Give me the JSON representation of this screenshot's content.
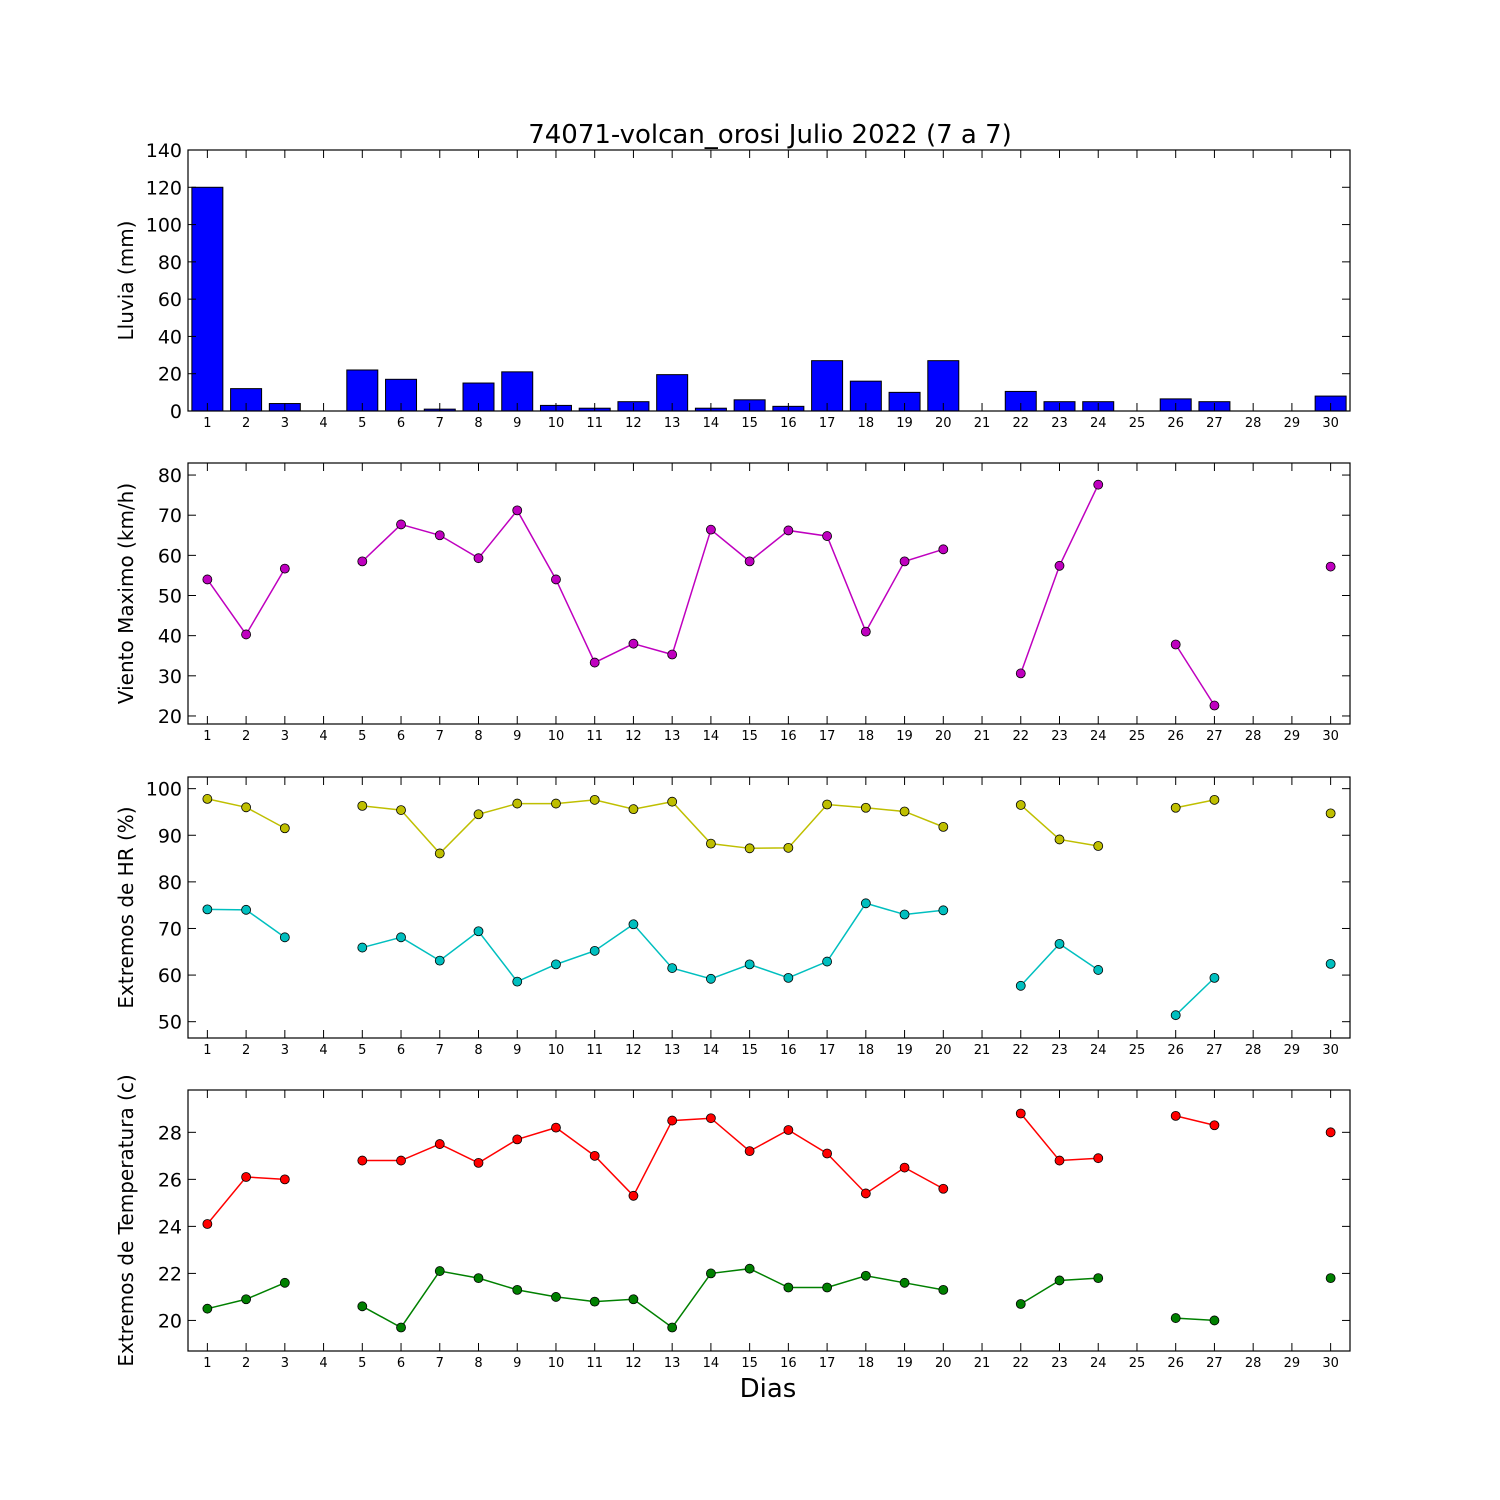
{
  "figure_title": "74071-volcan_orosi Julio 2022  (7 a 7)",
  "xlabel": "Dias",
  "colors": {
    "rain": "#0000ff",
    "wind": "#bf00bf",
    "hr_max": "#bfbf00",
    "hr_min": "#00bfbf",
    "temp_max": "#ff0000",
    "temp_min": "#008000"
  },
  "chart_data": [
    {
      "type": "bar",
      "id": "rain",
      "ylabel": "Lluvia (mm)",
      "ylim": [
        0,
        140
      ],
      "yticks": [
        0,
        20,
        40,
        60,
        80,
        100,
        120,
        140
      ],
      "categories": [
        1,
        2,
        3,
        4,
        5,
        6,
        7,
        8,
        9,
        10,
        11,
        12,
        13,
        14,
        15,
        16,
        17,
        18,
        19,
        20,
        21,
        22,
        23,
        24,
        25,
        26,
        27,
        28,
        29,
        30
      ],
      "series": [
        {
          "values": [
            120,
            12,
            4,
            0,
            22,
            17,
            1,
            15,
            21,
            3,
            1.5,
            5,
            19.5,
            1.5,
            6,
            2.5,
            27,
            16,
            10,
            27,
            0,
            10.5,
            5,
            5,
            0,
            6.5,
            5,
            0,
            0,
            8
          ],
          "color_key": "rain"
        }
      ]
    },
    {
      "type": "line",
      "id": "wind",
      "ylabel": "Viento Maximo (km/h)",
      "ylim": [
        18,
        83
      ],
      "yticks": [
        20,
        30,
        40,
        50,
        60,
        70,
        80
      ],
      "x": [
        1,
        2,
        3,
        4,
        5,
        6,
        7,
        8,
        9,
        10,
        11,
        12,
        13,
        14,
        15,
        16,
        17,
        18,
        19,
        20,
        21,
        22,
        23,
        24,
        25,
        26,
        27,
        28,
        29,
        30
      ],
      "series": [
        {
          "values": [
            54,
            40.3,
            56.7,
            null,
            58.5,
            67.7,
            65,
            59.3,
            71.2,
            54,
            33.3,
            38,
            35.3,
            66.4,
            58.5,
            66.2,
            64.8,
            41,
            58.5,
            61.5,
            null,
            30.6,
            57.4,
            77.6,
            null,
            37.8,
            22.6,
            null,
            null,
            57.2
          ],
          "color_key": "wind"
        }
      ]
    },
    {
      "type": "line",
      "id": "hr",
      "ylabel": "Extremos de HR (%)",
      "ylim": [
        46.5,
        102.5
      ],
      "yticks": [
        50,
        60,
        70,
        80,
        90,
        100
      ],
      "x": [
        1,
        2,
        3,
        4,
        5,
        6,
        7,
        8,
        9,
        10,
        11,
        12,
        13,
        14,
        15,
        16,
        17,
        18,
        19,
        20,
        21,
        22,
        23,
        24,
        25,
        26,
        27,
        28,
        29,
        30
      ],
      "series": [
        {
          "values": [
            97.8,
            96,
            91.5,
            null,
            96.3,
            95.4,
            86.1,
            94.5,
            96.8,
            96.8,
            97.6,
            95.6,
            97.2,
            88.2,
            87.2,
            87.3,
            96.6,
            95.9,
            95.1,
            91.8,
            null,
            96.5,
            89.1,
            87.7,
            null,
            95.9,
            97.6,
            null,
            null,
            94.7
          ],
          "color_key": "hr_max"
        },
        {
          "values": [
            74.1,
            74,
            68.1,
            null,
            65.9,
            68.1,
            63.1,
            69.4,
            58.6,
            62.3,
            65.2,
            70.9,
            61.5,
            59.2,
            62.3,
            59.4,
            62.9,
            75.4,
            73,
            73.9,
            null,
            57.7,
            66.7,
            61.1,
            null,
            51.4,
            59.4,
            null,
            null,
            62.4
          ],
          "color_key": "hr_min"
        }
      ]
    },
    {
      "type": "line",
      "id": "temp",
      "ylabel": "Extremos de Temperatura (c)",
      "ylim": [
        18.7,
        29.8
      ],
      "yticks": [
        20,
        22,
        24,
        26,
        28
      ],
      "x": [
        1,
        2,
        3,
        4,
        5,
        6,
        7,
        8,
        9,
        10,
        11,
        12,
        13,
        14,
        15,
        16,
        17,
        18,
        19,
        20,
        21,
        22,
        23,
        24,
        25,
        26,
        27,
        28,
        29,
        30
      ],
      "series": [
        {
          "values": [
            24.1,
            26.1,
            26,
            null,
            26.8,
            26.8,
            27.5,
            26.7,
            27.7,
            28.2,
            27,
            25.3,
            28.5,
            28.6,
            27.2,
            28.1,
            27.1,
            25.4,
            26.5,
            25.6,
            null,
            28.8,
            26.8,
            26.9,
            null,
            28.7,
            28.3,
            null,
            null,
            28
          ],
          "color_key": "temp_max"
        },
        {
          "values": [
            20.5,
            20.9,
            21.6,
            null,
            20.6,
            19.7,
            22.1,
            21.8,
            21.3,
            21,
            20.8,
            20.9,
            19.7,
            22,
            22.2,
            21.4,
            21.4,
            21.9,
            21.6,
            21.3,
            null,
            20.7,
            21.7,
            21.8,
            null,
            20.1,
            20,
            null,
            null,
            21.8
          ],
          "color_key": "temp_min"
        }
      ]
    }
  ]
}
